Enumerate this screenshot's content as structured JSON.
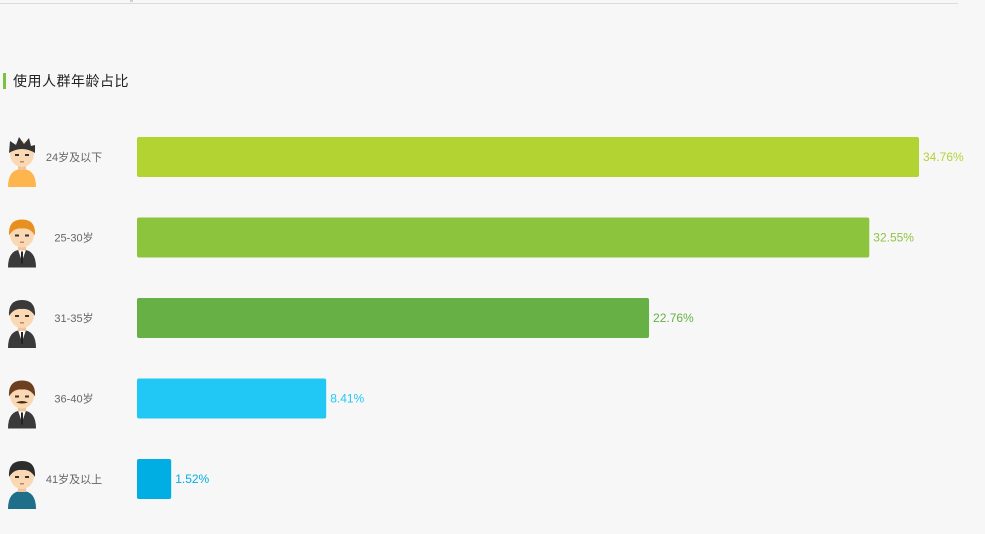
{
  "section": {
    "title": "使用人群年龄占比",
    "accent_color": "#7cc242"
  },
  "chart_data": {
    "type": "bar",
    "orientation": "horizontal",
    "title": "使用人群年龄占比",
    "categories": [
      "24岁及以下",
      "25-30岁",
      "31-35岁",
      "36-40岁",
      "41岁及以上"
    ],
    "values": [
      34.76,
      32.55,
      22.76,
      8.41,
      1.52
    ],
    "value_labels": [
      "34.76%",
      "32.55%",
      "22.76%",
      "8.41%",
      "1.52%"
    ],
    "colors": [
      "#b3d333",
      "#8dc43e",
      "#66b046",
      "#22c8f5",
      "#00aee3"
    ],
    "xlim": [
      0,
      34.76
    ],
    "grid": false,
    "icons": [
      "young-man-avatar",
      "businessman-avatar",
      "suited-man-avatar",
      "mustache-man-avatar",
      "older-man-avatar"
    ]
  }
}
